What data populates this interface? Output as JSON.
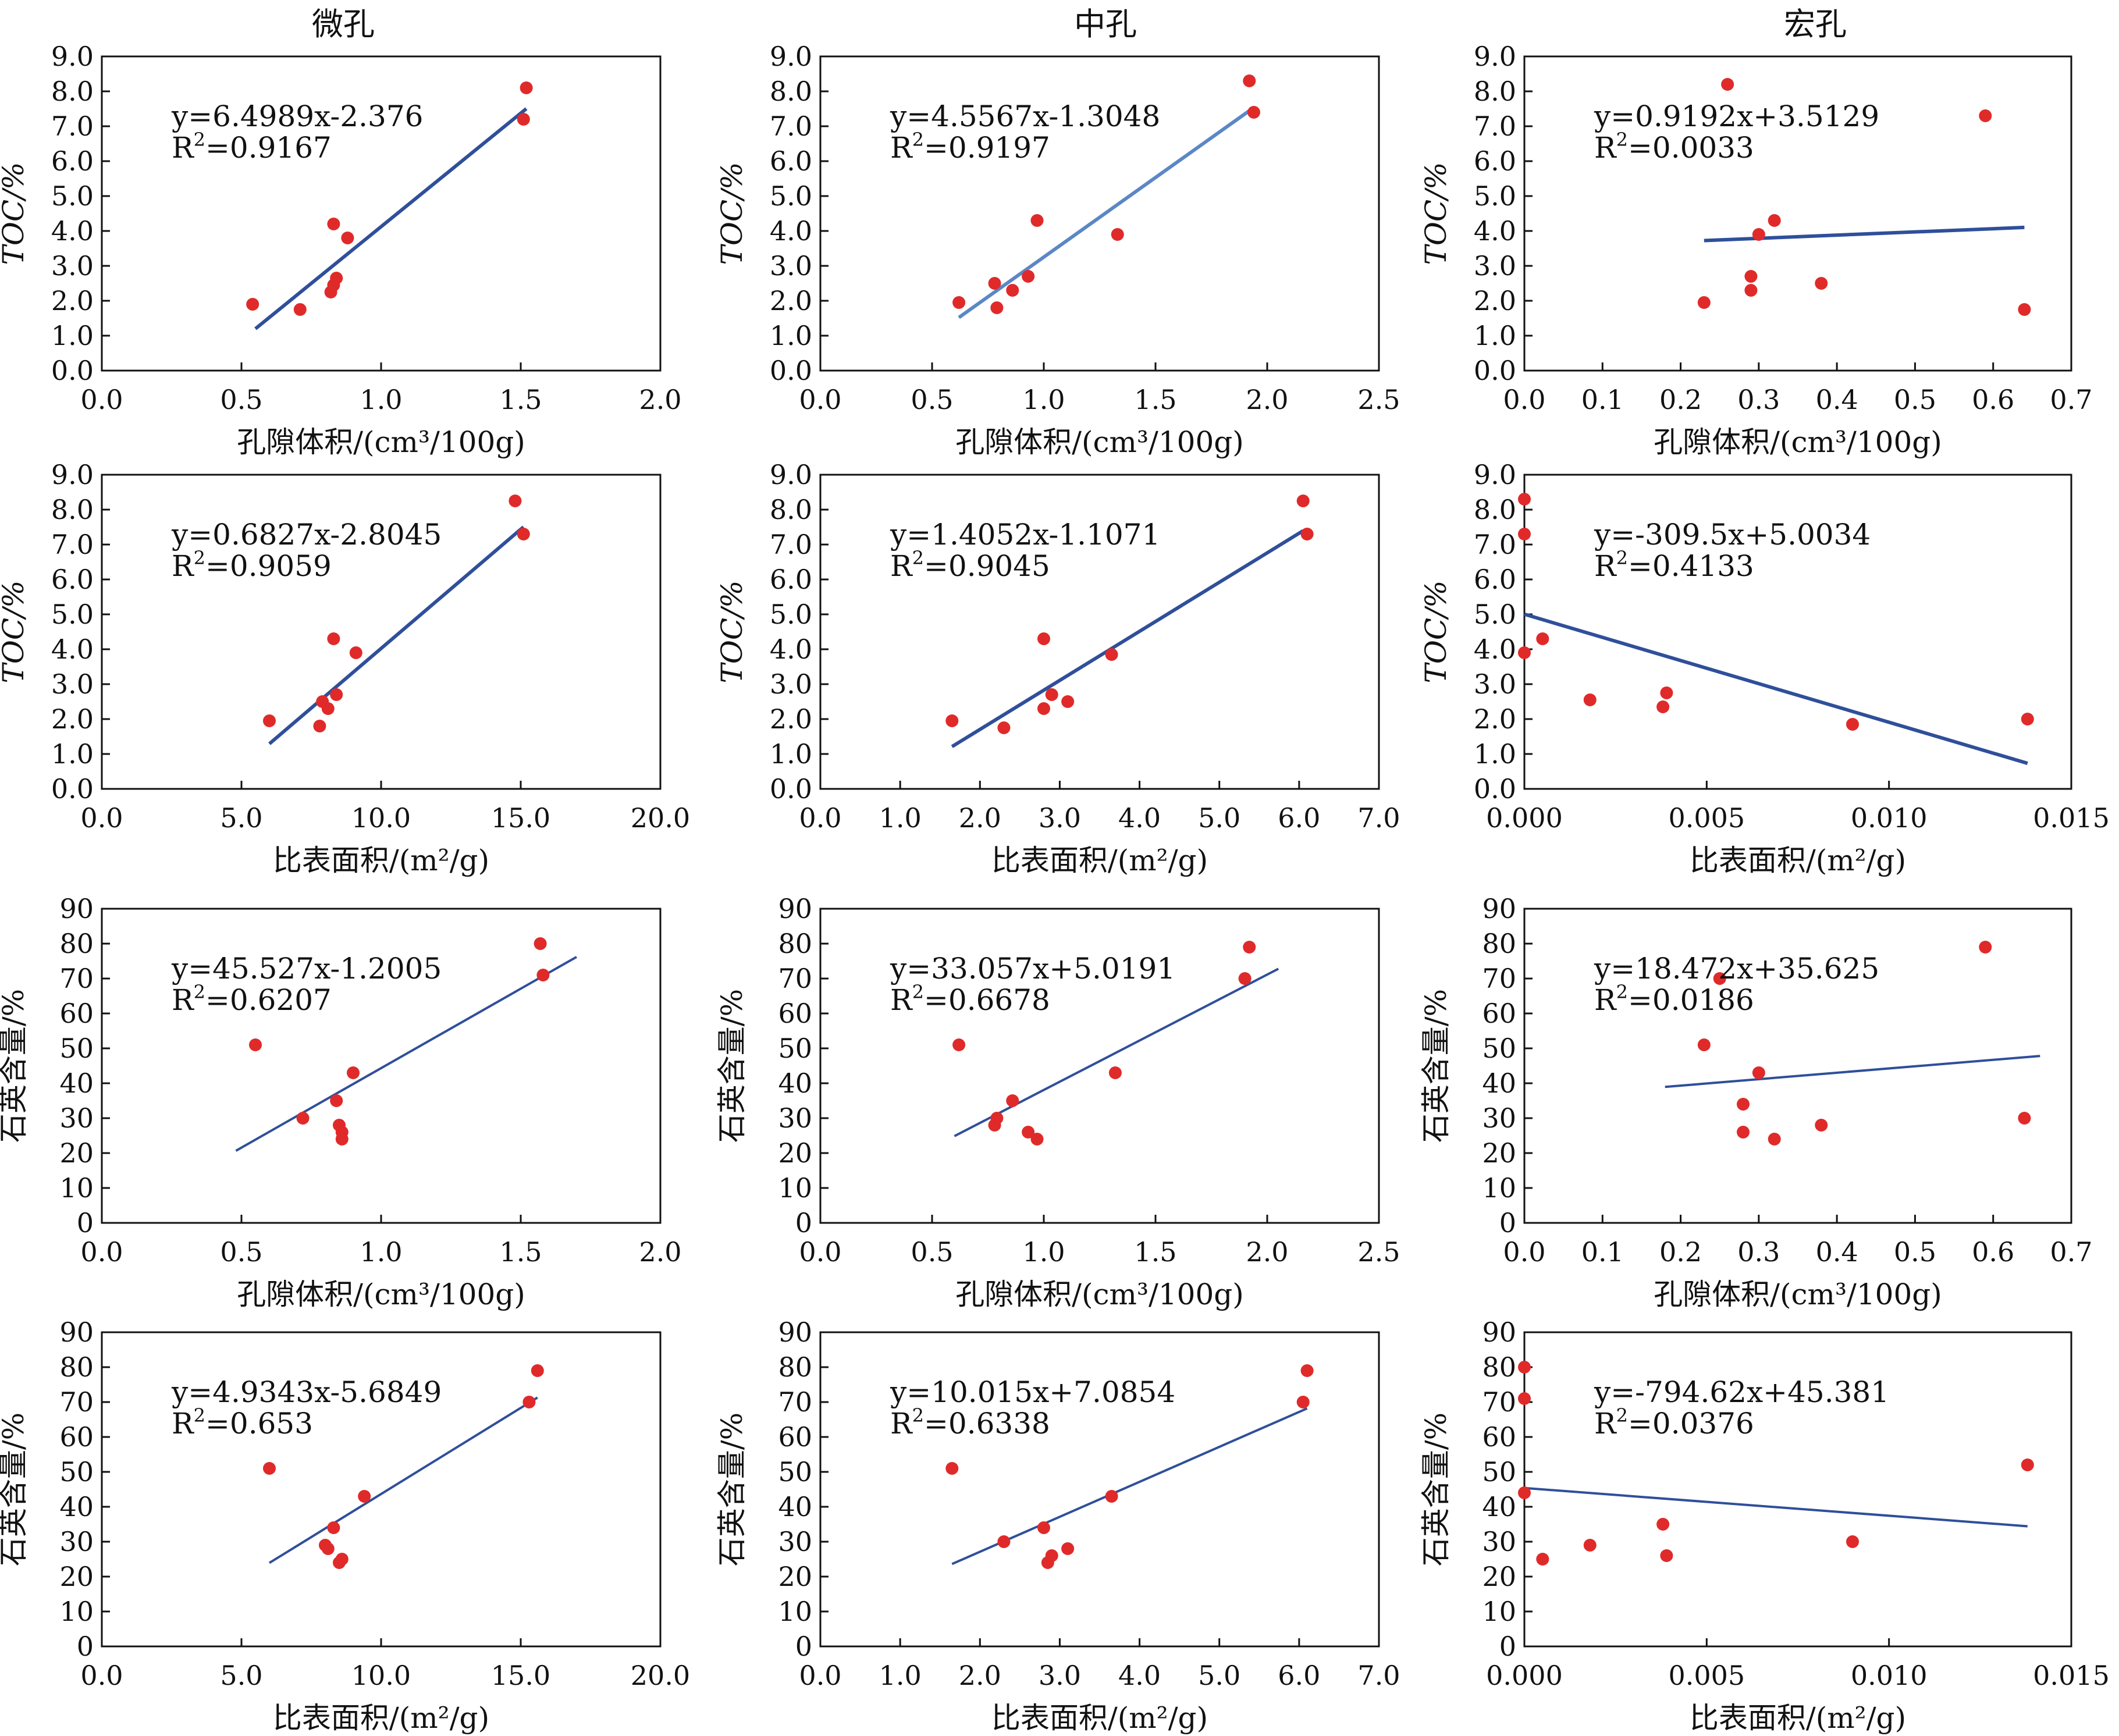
{
  "column_titles": [
    "微孔",
    "中孔",
    "宏孔"
  ],
  "colors": {
    "point": "#e02a2a",
    "fit_line": "#2f4f9a",
    "fit_line_light": "#5b87c5",
    "frame": "#111111"
  },
  "chart_data": [
    {
      "type": "scatter",
      "column": "微孔",
      "xlabel": "孔隙体积/(cm³/100g)",
      "ylabel": "TOC/%",
      "xlim": [
        0,
        2.0
      ],
      "ylim": [
        0,
        9
      ],
      "xticks": [
        "0.0",
        "0.5",
        "1.0",
        "1.5",
        "2.0"
      ],
      "yticks": [
        "0.0",
        "1.0",
        "2.0",
        "3.0",
        "4.0",
        "5.0",
        "6.0",
        "7.0",
        "8.0",
        "9.0"
      ],
      "equation": "y=6.4989x-2.376",
      "r2_label": "R",
      "r2_value": "=0.9167",
      "fit": {
        "slope": 6.4989,
        "intercept": -2.376,
        "x_range": [
          0.55,
          1.52
        ]
      },
      "points": [
        [
          0.54,
          1.9
        ],
        [
          0.71,
          1.75
        ],
        [
          0.82,
          2.25
        ],
        [
          0.83,
          2.45
        ],
        [
          0.84,
          2.65
        ],
        [
          0.83,
          4.2
        ],
        [
          0.88,
          3.8
        ],
        [
          1.52,
          8.1
        ],
        [
          1.51,
          7.2
        ]
      ]
    },
    {
      "type": "scatter",
      "column": "中孔",
      "xlabel": "孔隙体积/(cm³/100g)",
      "ylabel": "TOC/%",
      "xlim": [
        0,
        2.5
      ],
      "ylim": [
        0,
        9
      ],
      "xticks": [
        "0.0",
        "0.5",
        "1.0",
        "1.5",
        "2.0",
        "2.5"
      ],
      "yticks": [
        "0.0",
        "1.0",
        "2.0",
        "3.0",
        "4.0",
        "5.0",
        "6.0",
        "7.0",
        "8.0",
        "9.0"
      ],
      "equation": "y=4.5567x-1.3048",
      "r2_label": "R",
      "r2_value": "=0.9197",
      "fit": {
        "slope": 4.5567,
        "intercept": -1.3048,
        "x_range": [
          0.62,
          1.93
        ]
      },
      "points": [
        [
          0.62,
          1.95
        ],
        [
          0.78,
          2.5
        ],
        [
          0.79,
          1.8
        ],
        [
          0.86,
          2.3
        ],
        [
          0.93,
          2.7
        ],
        [
          0.97,
          4.3
        ],
        [
          1.33,
          3.9
        ],
        [
          1.92,
          8.3
        ],
        [
          1.94,
          7.4
        ]
      ]
    },
    {
      "type": "scatter",
      "column": "宏孔",
      "xlabel": "孔隙体积/(cm³/100g)",
      "ylabel": "TOC/%",
      "xlim": [
        0,
        0.7
      ],
      "ylim": [
        0,
        9
      ],
      "xticks": [
        "0.0",
        "0.1",
        "0.2",
        "0.3",
        "0.4",
        "0.5",
        "0.6",
        "0.7"
      ],
      "yticks": [
        "0.0",
        "1.0",
        "2.0",
        "3.0",
        "4.0",
        "5.0",
        "6.0",
        "7.0",
        "8.0",
        "9.0"
      ],
      "equation": "y=0.9192x+3.5129",
      "r2_label": "R",
      "r2_value": "=0.0033",
      "fit": {
        "slope": 0.9192,
        "intercept": 3.5129,
        "x_range": [
          0.23,
          0.64
        ]
      },
      "points": [
        [
          0.23,
          1.95
        ],
        [
          0.26,
          8.2
        ],
        [
          0.29,
          2.7
        ],
        [
          0.29,
          2.3
        ],
        [
          0.3,
          3.9
        ],
        [
          0.32,
          4.3
        ],
        [
          0.38,
          2.5
        ],
        [
          0.59,
          7.3
        ],
        [
          0.64,
          1.75
        ]
      ]
    },
    {
      "type": "scatter",
      "column": "微孔",
      "xlabel": "比表面积/(m²/g)",
      "ylabel": "TOC/%",
      "xlim": [
        0,
        20
      ],
      "ylim": [
        0,
        9
      ],
      "xticks": [
        "0.0",
        "5.0",
        "10.0",
        "15.0",
        "20.0"
      ],
      "yticks": [
        "0.0",
        "1.0",
        "2.0",
        "3.0",
        "4.0",
        "5.0",
        "6.0",
        "7.0",
        "8.0",
        "9.0"
      ],
      "equation": "y=0.6827x-2.8045",
      "r2_label": "R",
      "r2_value": "=0.9059",
      "fit": {
        "slope": 0.6827,
        "intercept": -2.8045,
        "x_range": [
          6.0,
          15.1
        ]
      },
      "points": [
        [
          6.0,
          1.95
        ],
        [
          7.8,
          1.8
        ],
        [
          7.9,
          2.5
        ],
        [
          8.1,
          2.3
        ],
        [
          8.4,
          2.7
        ],
        [
          8.3,
          4.3
        ],
        [
          9.1,
          3.9
        ],
        [
          14.8,
          8.25
        ],
        [
          15.1,
          7.3
        ]
      ]
    },
    {
      "type": "scatter",
      "column": "中孔",
      "xlabel": "比表面积/(m²/g)",
      "ylabel": "TOC/%",
      "xlim": [
        0,
        7
      ],
      "ylim": [
        0,
        9
      ],
      "xticks": [
        "0.0",
        "1.0",
        "2.0",
        "3.0",
        "4.0",
        "5.0",
        "6.0",
        "7.0"
      ],
      "yticks": [
        "0.0",
        "1.0",
        "2.0",
        "3.0",
        "4.0",
        "5.0",
        "6.0",
        "7.0",
        "8.0",
        "9.0"
      ],
      "equation": "y=1.4052x-1.1071",
      "r2_label": "R",
      "r2_value": "=0.9045",
      "fit": {
        "slope": 1.4052,
        "intercept": -1.1071,
        "x_range": [
          1.65,
          6.05
        ]
      },
      "points": [
        [
          1.65,
          1.95
        ],
        [
          2.3,
          1.75
        ],
        [
          2.8,
          2.3
        ],
        [
          2.8,
          4.3
        ],
        [
          2.9,
          2.7
        ],
        [
          3.1,
          2.5
        ],
        [
          3.65,
          3.85
        ],
        [
          6.05,
          8.25
        ],
        [
          6.1,
          7.3
        ]
      ]
    },
    {
      "type": "scatter",
      "column": "宏孔",
      "xlabel": "比表面积/(m²/g)",
      "ylabel": "TOC/%",
      "xlim": [
        0,
        0.015
      ],
      "ylim": [
        0,
        9
      ],
      "xticks": [
        "0.000",
        "0.005",
        "0.010",
        "0.015"
      ],
      "yticks": [
        "0.0",
        "1.0",
        "2.0",
        "3.0",
        "4.0",
        "5.0",
        "6.0",
        "7.0",
        "8.0",
        "9.0"
      ],
      "equation": "y=-309.5x+5.0034",
      "r2_label": "R",
      "r2_value": "=0.4133",
      "fit": {
        "slope": -309.5,
        "intercept": 5.0034,
        "x_range": [
          0.0,
          0.0138
        ]
      },
      "points": [
        [
          0.0,
          8.3
        ],
        [
          0.0,
          7.3
        ],
        [
          0.0,
          3.9
        ],
        [
          0.0005,
          4.3
        ],
        [
          0.0018,
          2.55
        ],
        [
          0.0038,
          2.35
        ],
        [
          0.0039,
          2.75
        ],
        [
          0.009,
          1.85
        ],
        [
          0.0138,
          2.0
        ]
      ]
    },
    {
      "type": "scatter",
      "column": "微孔",
      "xlabel": "孔隙体积/(cm³/100g)",
      "ylabel": "石英含量/%",
      "xlim": [
        0,
        2.0
      ],
      "ylim": [
        0,
        90
      ],
      "xticks": [
        "0.0",
        "0.5",
        "1.0",
        "1.5",
        "2.0"
      ],
      "yticks": [
        "0",
        "10",
        "20",
        "30",
        "40",
        "50",
        "60",
        "70",
        "80",
        "90"
      ],
      "equation": "y=45.527x-1.2005",
      "r2_label": "R",
      "r2_value": "=0.6207",
      "fit": {
        "slope": 45.527,
        "intercept": -1.2005,
        "x_range": [
          0.48,
          1.7
        ]
      },
      "points": [
        [
          0.55,
          51
        ],
        [
          0.72,
          30
        ],
        [
          0.84,
          35
        ],
        [
          0.85,
          28
        ],
        [
          0.86,
          26
        ],
        [
          0.86,
          24
        ],
        [
          0.9,
          43
        ],
        [
          1.57,
          80
        ],
        [
          1.58,
          71
        ]
      ]
    },
    {
      "type": "scatter",
      "column": "中孔",
      "xlabel": "孔隙体积/(cm³/100g)",
      "ylabel": "石英含量/%",
      "xlim": [
        0,
        2.5
      ],
      "ylim": [
        0,
        90
      ],
      "xticks": [
        "0.0",
        "0.5",
        "1.0",
        "1.5",
        "2.0",
        "2.5"
      ],
      "yticks": [
        "0",
        "10",
        "20",
        "30",
        "40",
        "50",
        "60",
        "70",
        "80",
        "90"
      ],
      "equation": "y=33.057x+5.0191",
      "r2_label": "R",
      "r2_value": "=0.6678",
      "fit": {
        "slope": 33.057,
        "intercept": 5.0191,
        "x_range": [
          0.6,
          2.05
        ]
      },
      "points": [
        [
          0.62,
          51
        ],
        [
          0.78,
          28
        ],
        [
          0.79,
          30
        ],
        [
          0.86,
          35
        ],
        [
          0.93,
          26
        ],
        [
          0.97,
          24
        ],
        [
          1.32,
          43
        ],
        [
          1.9,
          70
        ],
        [
          1.92,
          79
        ]
      ]
    },
    {
      "type": "scatter",
      "column": "宏孔",
      "xlabel": "孔隙体积/(cm³/100g)",
      "ylabel": "石英含量/%",
      "xlim": [
        0,
        0.7
      ],
      "ylim": [
        0,
        90
      ],
      "xticks": [
        "0.0",
        "0.1",
        "0.2",
        "0.3",
        "0.4",
        "0.5",
        "0.6",
        "0.7"
      ],
      "yticks": [
        "0",
        "10",
        "20",
        "30",
        "40",
        "50",
        "60",
        "70",
        "80",
        "90"
      ],
      "equation": "y=18.472x+35.625",
      "r2_label": "R",
      "r2_value": "=0.0186",
      "fit": {
        "slope": 18.472,
        "intercept": 35.625,
        "x_range": [
          0.18,
          0.66
        ]
      },
      "points": [
        [
          0.23,
          51
        ],
        [
          0.25,
          70
        ],
        [
          0.28,
          34
        ],
        [
          0.28,
          26
        ],
        [
          0.3,
          43
        ],
        [
          0.32,
          24
        ],
        [
          0.38,
          28
        ],
        [
          0.59,
          79
        ],
        [
          0.64,
          30
        ]
      ]
    },
    {
      "type": "scatter",
      "column": "微孔",
      "xlabel": "比表面积/(m²/g)",
      "ylabel": "石英含量/%",
      "xlim": [
        0,
        20
      ],
      "ylim": [
        0,
        90
      ],
      "xticks": [
        "0.0",
        "5.0",
        "10.0",
        "15.0",
        "20.0"
      ],
      "yticks": [
        "0",
        "10",
        "20",
        "30",
        "40",
        "50",
        "60",
        "70",
        "80",
        "90"
      ],
      "equation": "y=4.9343x-5.6849",
      "r2_label": "R",
      "r2_value": "=0.653",
      "fit": {
        "slope": 4.9343,
        "intercept": -5.6849,
        "x_range": [
          6.0,
          15.6
        ]
      },
      "points": [
        [
          6.0,
          51
        ],
        [
          8.0,
          29
        ],
        [
          8.1,
          28
        ],
        [
          8.3,
          34
        ],
        [
          8.5,
          24
        ],
        [
          8.6,
          25
        ],
        [
          9.4,
          43
        ],
        [
          15.3,
          70
        ],
        [
          15.6,
          79
        ]
      ]
    },
    {
      "type": "scatter",
      "column": "中孔",
      "xlabel": "比表面积/(m²/g)",
      "ylabel": "石英含量/%",
      "xlim": [
        0,
        7
      ],
      "ylim": [
        0,
        90
      ],
      "xticks": [
        "0.0",
        "1.0",
        "2.0",
        "3.0",
        "4.0",
        "5.0",
        "6.0",
        "7.0"
      ],
      "yticks": [
        "0",
        "10",
        "20",
        "30",
        "40",
        "50",
        "60",
        "70",
        "80",
        "90"
      ],
      "equation": "y=10.015x+7.0854",
      "r2_label": "R",
      "r2_value": "=0.6338",
      "fit": {
        "slope": 10.015,
        "intercept": 7.0854,
        "x_range": [
          1.65,
          6.1
        ]
      },
      "points": [
        [
          1.65,
          51
        ],
        [
          2.3,
          30
        ],
        [
          2.8,
          34
        ],
        [
          2.85,
          24
        ],
        [
          2.9,
          26
        ],
        [
          3.1,
          28
        ],
        [
          3.65,
          43
        ],
        [
          6.05,
          70
        ],
        [
          6.1,
          79
        ]
      ]
    },
    {
      "type": "scatter",
      "column": "宏孔",
      "xlabel": "比表面积/(m²/g)",
      "ylabel": "石英含量/%",
      "xlim": [
        0,
        0.015
      ],
      "ylim": [
        0,
        90
      ],
      "xticks": [
        "0.000",
        "0.005",
        "0.010",
        "0.015"
      ],
      "yticks": [
        "0",
        "10",
        "20",
        "30",
        "40",
        "50",
        "60",
        "70",
        "80",
        "90"
      ],
      "equation": "y=-794.62x+45.381",
      "r2_label": "R",
      "r2_value": "=0.0376",
      "fit": {
        "slope": -794.62,
        "intercept": 45.381,
        "x_range": [
          0.0,
          0.0138
        ]
      },
      "points": [
        [
          0.0,
          80
        ],
        [
          0.0,
          71
        ],
        [
          0.0,
          44
        ],
        [
          0.0005,
          25
        ],
        [
          0.0018,
          29
        ],
        [
          0.0038,
          35
        ],
        [
          0.0039,
          26
        ],
        [
          0.009,
          30
        ],
        [
          0.0138,
          52
        ]
      ]
    }
  ]
}
